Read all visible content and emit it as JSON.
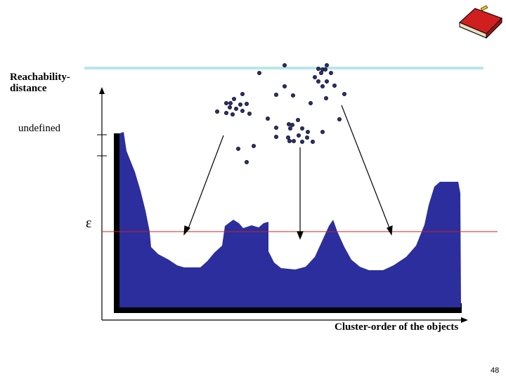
{
  "yaxis_label": [
    "Reachability-",
    "distance"
  ],
  "undefined_label": "undefined",
  "epsilon_label": "ε",
  "xaxis_label": "Cluster-order of the objects",
  "page_number": "48",
  "colors": {
    "plot_fill": "#2b2e9c",
    "plot_shadow": "#000000",
    "threshold_line": "#cc2222",
    "points": "#2b2e7a",
    "top_rule": "#b9e6ea",
    "book": "#d11f1f"
  },
  "icons": [
    "book-icon"
  ]
}
